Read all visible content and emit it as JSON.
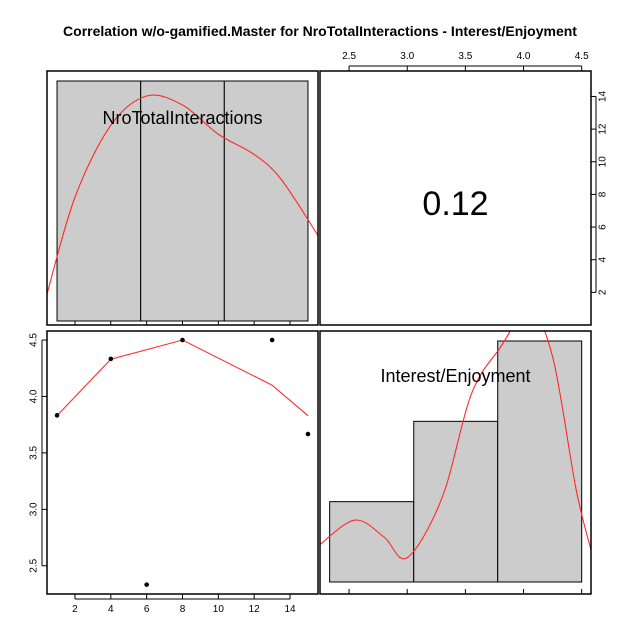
{
  "title": "Correlation w/o-gamified.Master for NroTotalInteractions - Interest/Enjoyment",
  "chart_data": {
    "type": "scatter",
    "variables": [
      "NroTotalInteractions",
      "Interest/Enjoyment"
    ],
    "correlation_label": "0.12",
    "scatter": {
      "x": [
        1,
        4,
        6,
        8,
        13,
        15
      ],
      "y": [
        3.833,
        4.333,
        2.333,
        4.5,
        4.5,
        3.667
      ],
      "xticks": [
        2,
        4,
        6,
        8,
        10,
        12,
        14
      ],
      "yticks": [
        2.5,
        3.0,
        3.5,
        4.0,
        4.5
      ],
      "xlim": [
        0.44,
        15.56
      ],
      "ylim": [
        2.25,
        4.58
      ],
      "smooth": [
        [
          1,
          3.83
        ],
        [
          4,
          4.33
        ],
        [
          8,
          4.5
        ],
        [
          13,
          4.1
        ],
        [
          15,
          3.83
        ]
      ]
    },
    "hist_x": {
      "breaks": [
        1,
        5.667,
        10.333,
        15
      ],
      "heights": [
        2,
        2,
        2
      ],
      "bottom_ticks": [
        2,
        4,
        6,
        8,
        10,
        12,
        14
      ],
      "right_ticks": [
        2,
        4,
        6,
        8,
        10,
        12,
        14
      ],
      "density": [
        [
          0.44,
          0.12
        ],
        [
          2,
          0.55
        ],
        [
          4,
          0.87
        ],
        [
          6,
          1.0
        ],
        [
          8,
          0.96
        ],
        [
          10,
          0.83
        ],
        [
          12,
          0.74
        ],
        [
          13.5,
          0.63
        ],
        [
          15.56,
          0.38
        ]
      ]
    },
    "hist_y": {
      "breaks": [
        2.333,
        3.056,
        3.778,
        4.5
      ],
      "heights": [
        1,
        2,
        3
      ],
      "top_ticks": [
        2.5,
        3.0,
        3.5,
        4.0,
        4.5
      ],
      "density": [
        [
          2.25,
          0.2
        ],
        [
          2.55,
          0.33
        ],
        [
          2.8,
          0.24
        ],
        [
          3.0,
          0.13
        ],
        [
          3.3,
          0.45
        ],
        [
          3.55,
          1.0
        ],
        [
          3.8,
          1.25
        ],
        [
          4.05,
          1.45
        ],
        [
          4.25,
          1.2
        ],
        [
          4.45,
          0.5
        ],
        [
          4.58,
          0.17
        ]
      ]
    }
  }
}
